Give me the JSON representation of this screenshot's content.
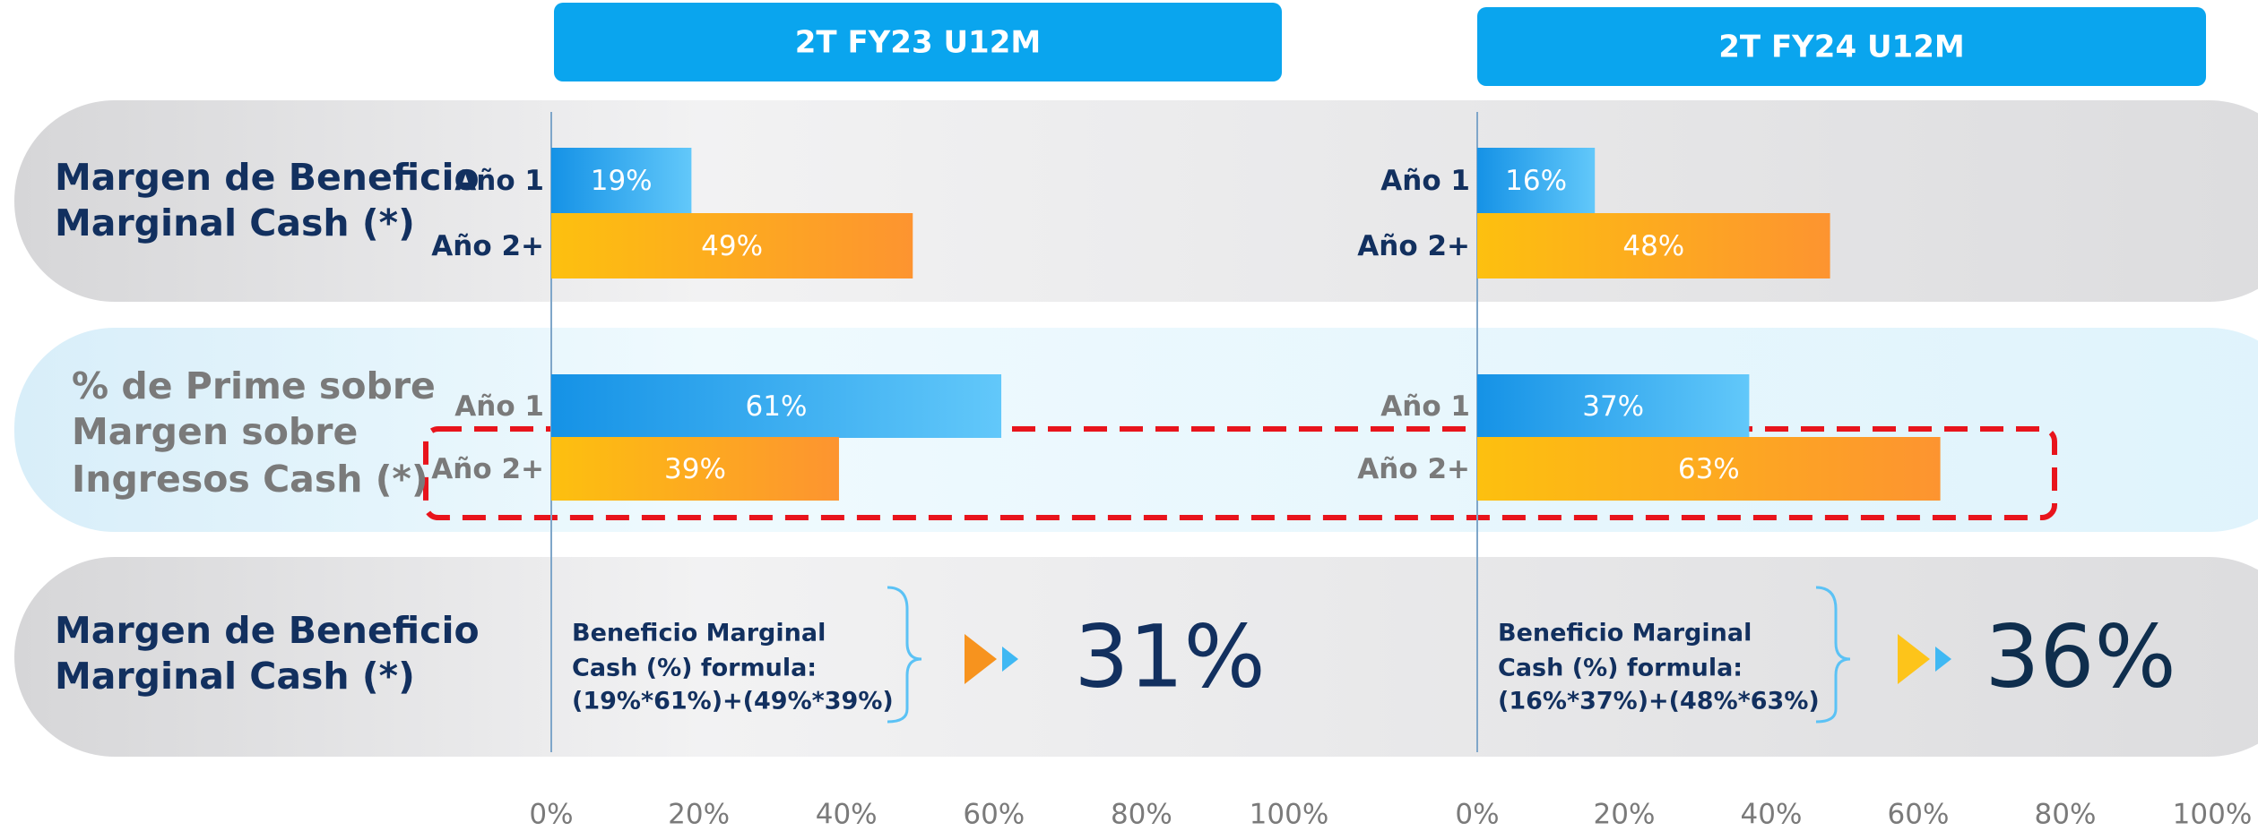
{
  "row_labels": [
    [
      "Margen de Beneficio",
      "Marginal Cash (*)"
    ],
    [
      "% de Prime sobre",
      "Margen sobre",
      "Ingresos Cash (*)"
    ],
    [
      "Margen de Beneficio",
      "Marginal Cash (*)"
    ]
  ],
  "chart_data": [
    {
      "type": "bar",
      "orientation": "horizontal",
      "title": "2T FY23 U12M",
      "colors": [
        "#2a9ef0",
        "#fdb913"
      ],
      "groups": [
        {
          "categories": [
            "Año 1",
            "Año 2+"
          ],
          "values": [
            19,
            49
          ],
          "value_labels": [
            "19%",
            "49%"
          ]
        },
        {
          "categories": [
            "Año 1",
            "Año 2+"
          ],
          "values": [
            61,
            39
          ],
          "value_labels": [
            "61%",
            "39%"
          ]
        }
      ],
      "formula": [
        "Beneficio Marginal",
        "Cash (%) formula:",
        "(19%*61%)+(49%*39%)"
      ],
      "result": "31%",
      "xlim": [
        0,
        100
      ],
      "xticks": [
        {
          "value": 0,
          "label": "0%"
        },
        {
          "value": 20,
          "label": "20%"
        },
        {
          "value": 40,
          "label": "40%"
        },
        {
          "value": 60,
          "label": "60%"
        },
        {
          "value": 80,
          "label": "80%"
        },
        {
          "value": 100,
          "label": "100%"
        }
      ]
    },
    {
      "type": "bar",
      "orientation": "horizontal",
      "title": "2T FY24 U12M",
      "colors": [
        "#2a9ef0",
        "#fdb913"
      ],
      "groups": [
        {
          "categories": [
            "Año 1",
            "Año 2+"
          ],
          "values": [
            16,
            48
          ],
          "value_labels": [
            "16%",
            "48%"
          ]
        },
        {
          "categories": [
            "Año 1",
            "Año 2+"
          ],
          "values": [
            37,
            63
          ],
          "value_labels": [
            "37%",
            "63%"
          ]
        }
      ],
      "formula": [
        "Beneficio Marginal",
        "Cash (%) formula:",
        "(16%*37%)+(48%*63%)"
      ],
      "result": "36%",
      "xlim": [
        0,
        100
      ],
      "xticks": [
        {
          "value": 0,
          "label": "0%"
        },
        {
          "value": 20,
          "label": "20%"
        },
        {
          "value": 40,
          "label": "40%"
        },
        {
          "value": 60,
          "label": "60%"
        },
        {
          "value": 80,
          "label": "80%"
        },
        {
          "value": 100,
          "label": "100%"
        }
      ]
    }
  ]
}
